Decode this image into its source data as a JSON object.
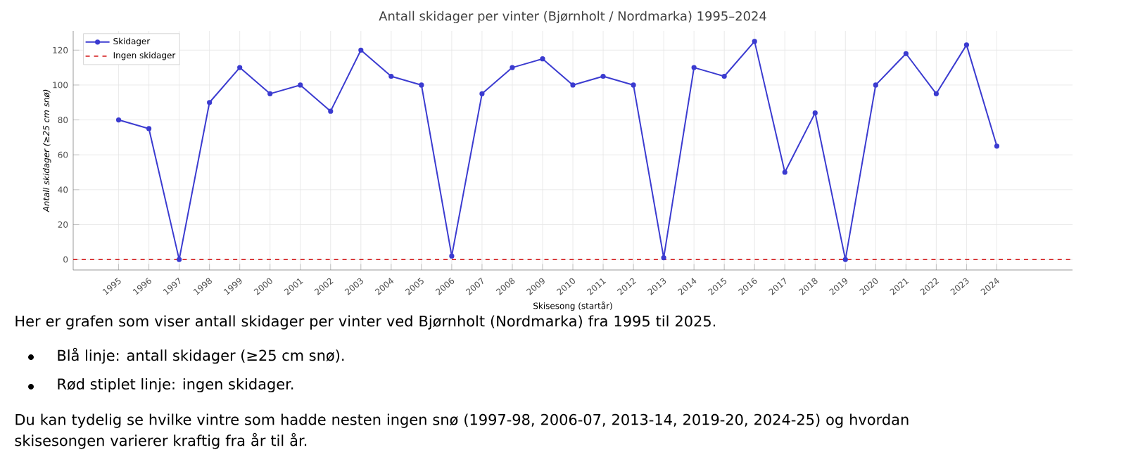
{
  "chart_data": {
    "type": "line",
    "title": "Antall skidager per vinter (Bjørnholt / Nordmarka) 1995–2024",
    "xlabel": "Skisesong (startår)",
    "ylabel": "Antall skidager (≥25 cm snø)",
    "categories": [
      "1995",
      "1996",
      "1997",
      "1998",
      "1999",
      "2000",
      "2001",
      "2002",
      "2003",
      "2004",
      "2005",
      "2006",
      "2007",
      "2008",
      "2009",
      "2010",
      "2011",
      "2012",
      "2013",
      "2014",
      "2015",
      "2016",
      "2017",
      "2018",
      "2019",
      "2020",
      "2021",
      "2022",
      "2023",
      "2024"
    ],
    "series": [
      {
        "name": "Skidager",
        "color": "#3b3bd0",
        "values": [
          80,
          75,
          0,
          90,
          110,
          95,
          100,
          85,
          120,
          105,
          100,
          2,
          95,
          110,
          115,
          100,
          105,
          100,
          1,
          110,
          105,
          125,
          50,
          84,
          0,
          100,
          118,
          95,
          123,
          65
        ]
      }
    ],
    "ylim": [
      -6,
      131
    ],
    "yticks": [
      0,
      20,
      40,
      60,
      80,
      100,
      120
    ],
    "grid": true,
    "legend": "top left",
    "marker": "circle",
    "line_style": "solid",
    "ref_lines": [
      {
        "axis": "y",
        "value": 0,
        "label": "Ingen skidager",
        "color": "#d62728",
        "line_style": "dashed"
      }
    ],
    "annotations": [
      "Her er grafen som viser antall skidager per vinter ved Bjørnholt (Nordmarka) fra 1995 til 2025.",
      "Blå linje: antall skidager (≥25 cm snø).",
      "Rød stiplet linje: ingen skidager.",
      "Du kan tydelig se hvilke vintre som hadde nesten ingen snø (1997-98, 2006-07, 2013-14, 2019-20, 2024-25) og hvordan skisesongen varierer kraftig fra år til år."
    ]
  }
}
